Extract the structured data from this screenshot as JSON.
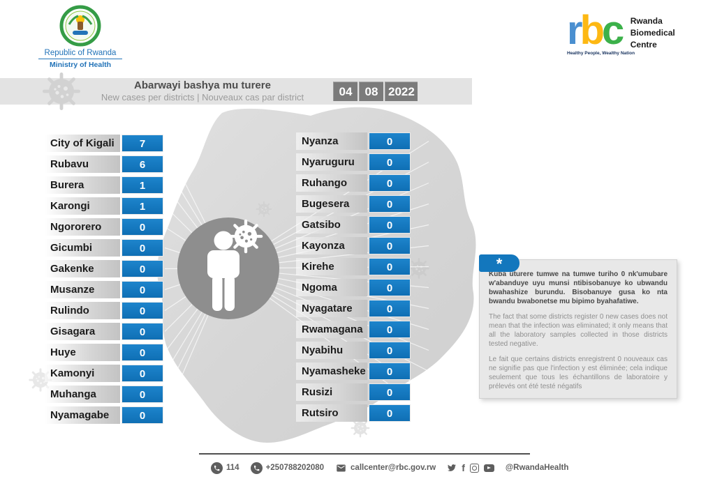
{
  "colors": {
    "accent_blue": "#1377bd",
    "rbc_blue": "#4a8fd0",
    "rbc_yellow": "#fdb813",
    "rbc_green": "#3cb14a",
    "band_gray": "#e3e3e3",
    "date_box_gray": "#7b7b7b",
    "map_gray": "#d9d9d9",
    "circle_gray": "#8e8e8e"
  },
  "government": {
    "country": "Republic of Rwanda",
    "ministry": "Ministry of Health"
  },
  "rbc_logo": {
    "letters": [
      "r",
      "b",
      "c"
    ],
    "name_lines": [
      "Rwanda",
      "Biomedical",
      "Centre"
    ],
    "tagline": "Healthy People, Wealthy Nation"
  },
  "header": {
    "title_rw": "Abarwayi bashya mu turere",
    "subtitle": "New cases per districts  |  Nouveaux cas par district",
    "date": {
      "day": "04",
      "month": "08",
      "year": "2022"
    }
  },
  "districts": {
    "left": [
      {
        "name": "City of Kigali",
        "value": "7"
      },
      {
        "name": "Rubavu",
        "value": "6"
      },
      {
        "name": "Burera",
        "value": "1"
      },
      {
        "name": "Karongi",
        "value": "1"
      },
      {
        "name": "Ngororero",
        "value": "0"
      },
      {
        "name": "Gicumbi",
        "value": "0"
      },
      {
        "name": "Gakenke",
        "value": "0"
      },
      {
        "name": "Musanze",
        "value": "0"
      },
      {
        "name": "Rulindo",
        "value": "0"
      },
      {
        "name": "Gisagara",
        "value": "0"
      },
      {
        "name": "Huye",
        "value": "0"
      },
      {
        "name": "Kamonyi",
        "value": "0"
      },
      {
        "name": "Muhanga",
        "value": "0"
      },
      {
        "name": "Nyamagabe",
        "value": "0"
      }
    ],
    "right": [
      {
        "name": "Nyanza",
        "value": "0"
      },
      {
        "name": "Nyaruguru",
        "value": "0"
      },
      {
        "name": "Ruhango",
        "value": "0"
      },
      {
        "name": "Bugesera",
        "value": "0"
      },
      {
        "name": "Gatsibo",
        "value": "0"
      },
      {
        "name": "Kayonza",
        "value": "0"
      },
      {
        "name": "Kirehe",
        "value": "0"
      },
      {
        "name": "Ngoma",
        "value": "0"
      },
      {
        "name": "Nyagatare",
        "value": "0"
      },
      {
        "name": "Rwamagana",
        "value": "0"
      },
      {
        "name": "Nyabihu",
        "value": "0"
      },
      {
        "name": "Nyamasheke",
        "value": "0"
      },
      {
        "name": "Rusizi",
        "value": "0"
      },
      {
        "name": "Rutsiro",
        "value": "0"
      }
    ]
  },
  "notes": {
    "tab_symbol": "*",
    "kinyarwanda": "Kuba uturere tumwe na tumwe turiho 0 nk'umubare w'abanduye  uyu munsi ntibisobanuye ko ubwandu bwahashize burundu. Bisobanuye gusa ko nta bwandu bwabonetse mu bipimo byahafatiwe.",
    "english": "The fact that some districts register 0 new cases does not mean that the infection was eliminated; it only means that all the laboratory samples collected in those districts tested negative.",
    "french": "Le fait que certains districts enregistrent 0 nouveaux cas ne signifie pas que l'infection y est éliminée; cela indique seulement que tous les échantillons de laboratoire y prélevés ont été testé négatifs"
  },
  "footer": {
    "phone_short": "114",
    "phone": "+250788202080",
    "email": "callcenter@rbc.gov.rw",
    "social_handle": "@RwandaHealth",
    "social_icons": [
      "twitter",
      "facebook",
      "instagram",
      "youtube"
    ]
  },
  "chart_data": {
    "type": "table",
    "title": "Abarwayi bashya mu turere — New cases per districts | Nouveaux cas par district",
    "date": "04/08/2022",
    "columns": [
      "District",
      "New cases"
    ],
    "categories": [
      "City of Kigali",
      "Rubavu",
      "Burera",
      "Karongi",
      "Ngororero",
      "Gicumbi",
      "Gakenke",
      "Musanze",
      "Rulindo",
      "Gisagara",
      "Huye",
      "Kamonyi",
      "Muhanga",
      "Nyamagabe",
      "Nyanza",
      "Nyaruguru",
      "Ruhango",
      "Bugesera",
      "Gatsibo",
      "Kayonza",
      "Kirehe",
      "Ngoma",
      "Nyagatare",
      "Rwamagana",
      "Nyabihu",
      "Nyamasheke",
      "Rusizi",
      "Rutsiro"
    ],
    "values": [
      7,
      6,
      1,
      1,
      0,
      0,
      0,
      0,
      0,
      0,
      0,
      0,
      0,
      0,
      0,
      0,
      0,
      0,
      0,
      0,
      0,
      0,
      0,
      0,
      0,
      0,
      0,
      0
    ],
    "layout": "two-column callout list around Rwanda map with central person+virus figure"
  }
}
